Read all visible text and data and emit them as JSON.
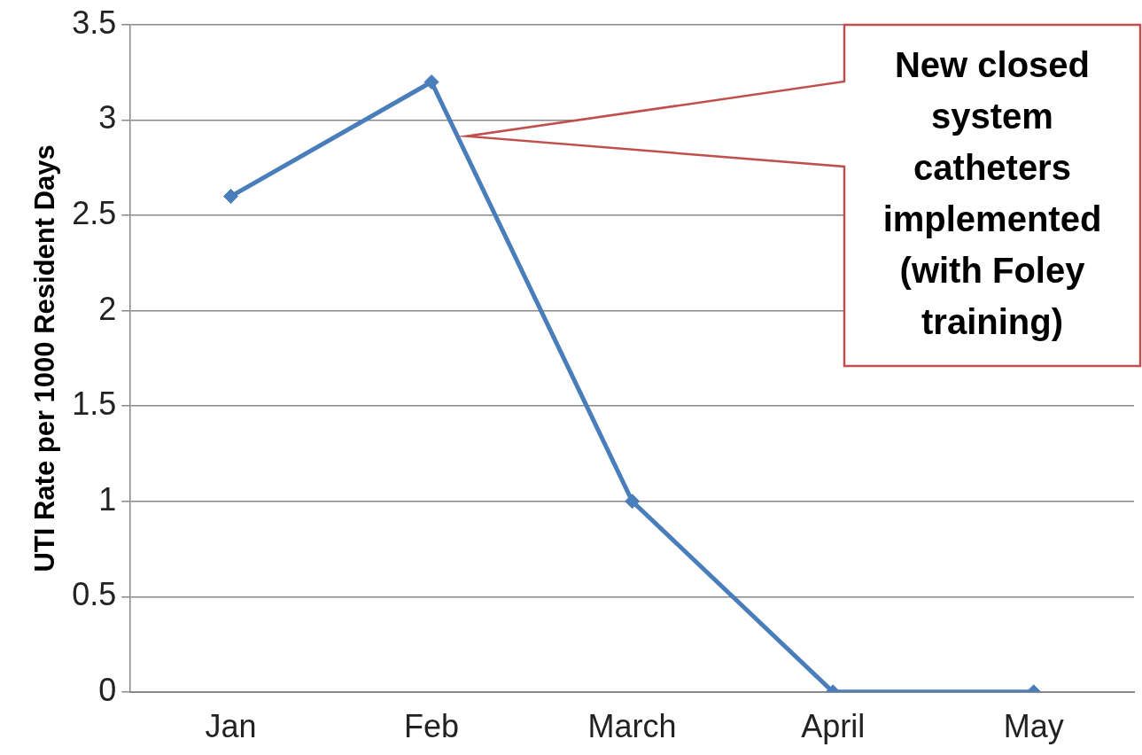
{
  "chart_data": {
    "type": "line",
    "ylabel": "UTI Rate per 1000 Resident Days",
    "categories": [
      "Jan",
      "Feb",
      "March",
      "April",
      "May"
    ],
    "series": [
      {
        "color": "#4a7ebb",
        "values": [
          2.6,
          3.2,
          1,
          0,
          0
        ]
      }
    ],
    "ylim": [
      0,
      3.5
    ],
    "yticks": [
      0,
      0.5,
      1,
      1.5,
      2,
      2.5,
      3,
      3.5
    ],
    "grid": "y",
    "legend": false,
    "marker": "diamond",
    "line_style": "solid",
    "annotations": [
      "New closed system catheters implemented (with Foley training)"
    ]
  }
}
